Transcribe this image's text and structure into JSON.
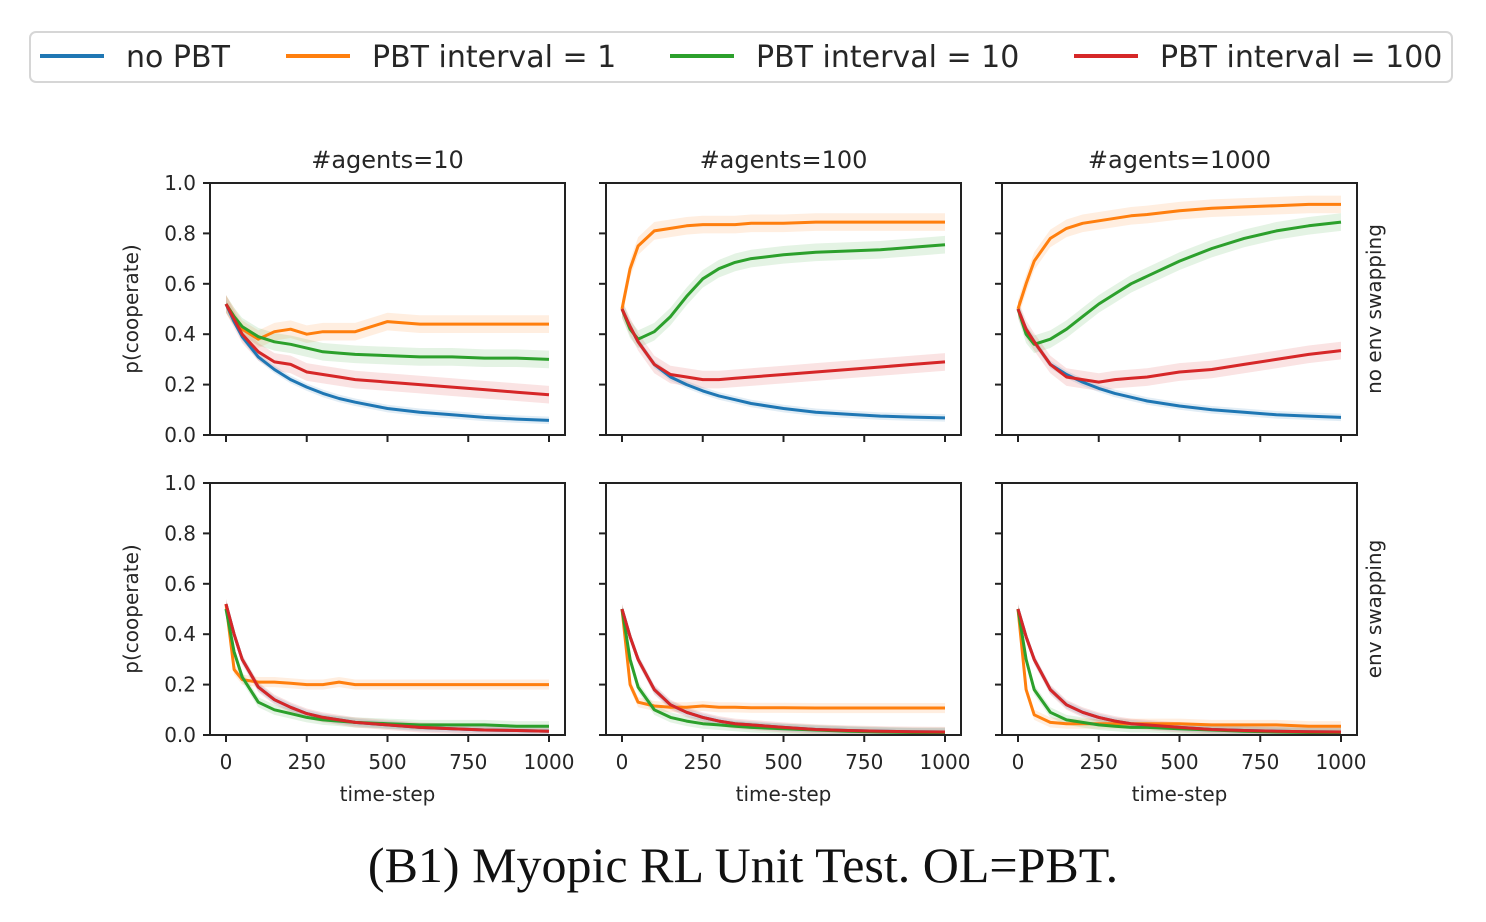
{
  "legend": [
    {
      "label": "no PBT",
      "color": "#1f77b4"
    },
    {
      "label": "PBT interval = 1",
      "color": "#ff7f0e"
    },
    {
      "label": "PBT interval = 10",
      "color": "#2ca02c"
    },
    {
      "label": "PBT interval = 100",
      "color": "#d62728"
    }
  ],
  "caption": "(B1) Myopic RL Unit Test. OL=PBT.",
  "chart_data": {
    "type": "line",
    "grid": false,
    "legend_position": "top",
    "xlabel": "time-step",
    "ylabel": "p(cooperate)",
    "xlim": [
      0,
      1000
    ],
    "ylim": [
      0,
      1
    ],
    "x_ticks": [
      "0",
      "250",
      "500",
      "750",
      "1000"
    ],
    "y_ticks": [
      "0.0",
      "0.2",
      "0.4",
      "0.6",
      "0.8",
      "1.0"
    ],
    "column_titles": [
      "#agents=10",
      "#agents=100",
      "#agents=1000"
    ],
    "row_labels": [
      "no env swapping",
      "env swapping"
    ],
    "x": [
      0,
      25,
      50,
      100,
      150,
      200,
      250,
      300,
      350,
      400,
      500,
      600,
      700,
      800,
      900,
      1000
    ],
    "panels": [
      {
        "row": 0,
        "col": 0,
        "series": [
          {
            "name": "no PBT",
            "values": [
              0.52,
              0.45,
              0.39,
              0.31,
              0.26,
              0.22,
              0.19,
              0.165,
              0.145,
              0.13,
              0.105,
              0.09,
              0.08,
              0.07,
              0.063,
              0.058
            ]
          },
          {
            "name": "PBT interval = 1",
            "values": [
              0.52,
              0.47,
              0.42,
              0.38,
              0.41,
              0.42,
              0.4,
              0.41,
              0.41,
              0.41,
              0.45,
              0.44,
              0.44,
              0.44,
              0.44,
              0.44
            ]
          },
          {
            "name": "PBT interval = 10",
            "values": [
              0.52,
              0.47,
              0.43,
              0.39,
              0.37,
              0.36,
              0.345,
              0.33,
              0.325,
              0.32,
              0.315,
              0.31,
              0.31,
              0.305,
              0.305,
              0.3
            ]
          },
          {
            "name": "PBT interval = 100",
            "values": [
              0.52,
              0.46,
              0.4,
              0.33,
              0.29,
              0.28,
              0.25,
              0.24,
              0.23,
              0.22,
              0.21,
              0.2,
              0.19,
              0.18,
              0.17,
              0.16
            ]
          }
        ]
      },
      {
        "row": 0,
        "col": 1,
        "series": [
          {
            "name": "no PBT",
            "values": [
              0.5,
              0.43,
              0.37,
              0.28,
              0.23,
              0.2,
              0.175,
              0.155,
              0.14,
              0.125,
              0.105,
              0.09,
              0.082,
              0.075,
              0.071,
              0.068
            ]
          },
          {
            "name": "PBT interval = 1",
            "values": [
              0.5,
              0.66,
              0.75,
              0.81,
              0.82,
              0.83,
              0.835,
              0.835,
              0.835,
              0.84,
              0.84,
              0.845,
              0.845,
              0.845,
              0.845,
              0.845
            ]
          },
          {
            "name": "PBT interval = 10",
            "values": [
              0.5,
              0.42,
              0.38,
              0.41,
              0.47,
              0.55,
              0.62,
              0.66,
              0.685,
              0.7,
              0.715,
              0.725,
              0.73,
              0.735,
              0.745,
              0.755
            ]
          },
          {
            "name": "PBT interval = 100",
            "values": [
              0.5,
              0.43,
              0.37,
              0.28,
              0.24,
              0.23,
              0.22,
              0.22,
              0.225,
              0.23,
              0.24,
              0.25,
              0.26,
              0.27,
              0.28,
              0.29
            ]
          }
        ]
      },
      {
        "row": 0,
        "col": 2,
        "series": [
          {
            "name": "no PBT",
            "values": [
              0.5,
              0.42,
              0.37,
              0.28,
              0.24,
              0.21,
              0.185,
              0.165,
              0.15,
              0.135,
              0.115,
              0.1,
              0.09,
              0.08,
              0.075,
              0.07
            ]
          },
          {
            "name": "PBT interval = 1",
            "values": [
              0.5,
              0.6,
              0.69,
              0.78,
              0.82,
              0.84,
              0.85,
              0.86,
              0.87,
              0.875,
              0.89,
              0.9,
              0.905,
              0.91,
              0.915,
              0.915
            ]
          },
          {
            "name": "PBT interval = 10",
            "values": [
              0.5,
              0.4,
              0.36,
              0.38,
              0.42,
              0.47,
              0.52,
              0.56,
              0.6,
              0.63,
              0.69,
              0.74,
              0.78,
              0.81,
              0.83,
              0.845
            ]
          },
          {
            "name": "PBT interval = 100",
            "values": [
              0.5,
              0.42,
              0.37,
              0.28,
              0.23,
              0.22,
              0.21,
              0.22,
              0.225,
              0.23,
              0.25,
              0.26,
              0.28,
              0.3,
              0.32,
              0.335
            ]
          }
        ]
      },
      {
        "row": 1,
        "col": 0,
        "series": [
          {
            "name": "no PBT",
            "values": [
              0.52,
              0.4,
              0.3,
              0.19,
              0.14,
              0.11,
              0.085,
              0.07,
              0.06,
              0.05,
              0.04,
              0.03,
              0.025,
              0.02,
              0.018,
              0.015
            ]
          },
          {
            "name": "PBT interval = 1",
            "values": [
              0.52,
              0.26,
              0.22,
              0.21,
              0.21,
              0.205,
              0.2,
              0.2,
              0.21,
              0.2,
              0.2,
              0.2,
              0.2,
              0.2,
              0.2,
              0.2
            ]
          },
          {
            "name": "PBT interval = 10",
            "values": [
              0.5,
              0.33,
              0.23,
              0.13,
              0.1,
              0.085,
              0.07,
              0.06,
              0.055,
              0.05,
              0.045,
              0.04,
              0.04,
              0.04,
              0.035,
              0.035
            ]
          },
          {
            "name": "PBT interval = 100",
            "values": [
              0.52,
              0.4,
              0.3,
              0.19,
              0.14,
              0.11,
              0.085,
              0.07,
              0.06,
              0.05,
              0.04,
              0.03,
              0.025,
              0.02,
              0.018,
              0.015
            ]
          }
        ]
      },
      {
        "row": 1,
        "col": 1,
        "series": [
          {
            "name": "no PBT",
            "values": [
              0.5,
              0.39,
              0.3,
              0.18,
              0.12,
              0.09,
              0.07,
              0.055,
              0.045,
              0.04,
              0.03,
              0.022,
              0.018,
              0.015,
              0.013,
              0.012
            ]
          },
          {
            "name": "PBT interval = 1",
            "values": [
              0.5,
              0.2,
              0.13,
              0.115,
              0.11,
              0.11,
              0.115,
              0.11,
              0.11,
              0.108,
              0.108,
              0.107,
              0.107,
              0.107,
              0.107,
              0.107
            ]
          },
          {
            "name": "PBT interval = 10",
            "values": [
              0.5,
              0.3,
              0.19,
              0.1,
              0.07,
              0.055,
              0.045,
              0.04,
              0.035,
              0.03,
              0.025,
              0.02,
              0.015,
              0.012,
              0.01,
              0.01
            ]
          },
          {
            "name": "PBT interval = 100",
            "values": [
              0.5,
              0.39,
              0.3,
              0.18,
              0.12,
              0.09,
              0.07,
              0.055,
              0.045,
              0.04,
              0.03,
              0.022,
              0.018,
              0.015,
              0.013,
              0.012
            ]
          }
        ]
      },
      {
        "row": 1,
        "col": 2,
        "series": [
          {
            "name": "no PBT",
            "values": [
              0.5,
              0.39,
              0.3,
              0.18,
              0.12,
              0.09,
              0.07,
              0.055,
              0.045,
              0.04,
              0.03,
              0.022,
              0.018,
              0.015,
              0.013,
              0.012
            ]
          },
          {
            "name": "PBT interval = 1",
            "values": [
              0.5,
              0.18,
              0.08,
              0.05,
              0.045,
              0.045,
              0.045,
              0.045,
              0.045,
              0.045,
              0.045,
              0.04,
              0.04,
              0.04,
              0.035,
              0.035
            ]
          },
          {
            "name": "PBT interval = 10",
            "values": [
              0.5,
              0.3,
              0.18,
              0.09,
              0.06,
              0.05,
              0.04,
              0.035,
              0.03,
              0.03,
              0.025,
              0.02,
              0.015,
              0.012,
              0.01,
              0.01
            ]
          },
          {
            "name": "PBT interval = 100",
            "values": [
              0.5,
              0.39,
              0.3,
              0.18,
              0.12,
              0.09,
              0.07,
              0.055,
              0.045,
              0.04,
              0.03,
              0.022,
              0.018,
              0.015,
              0.013,
              0.012
            ]
          }
        ]
      }
    ]
  }
}
